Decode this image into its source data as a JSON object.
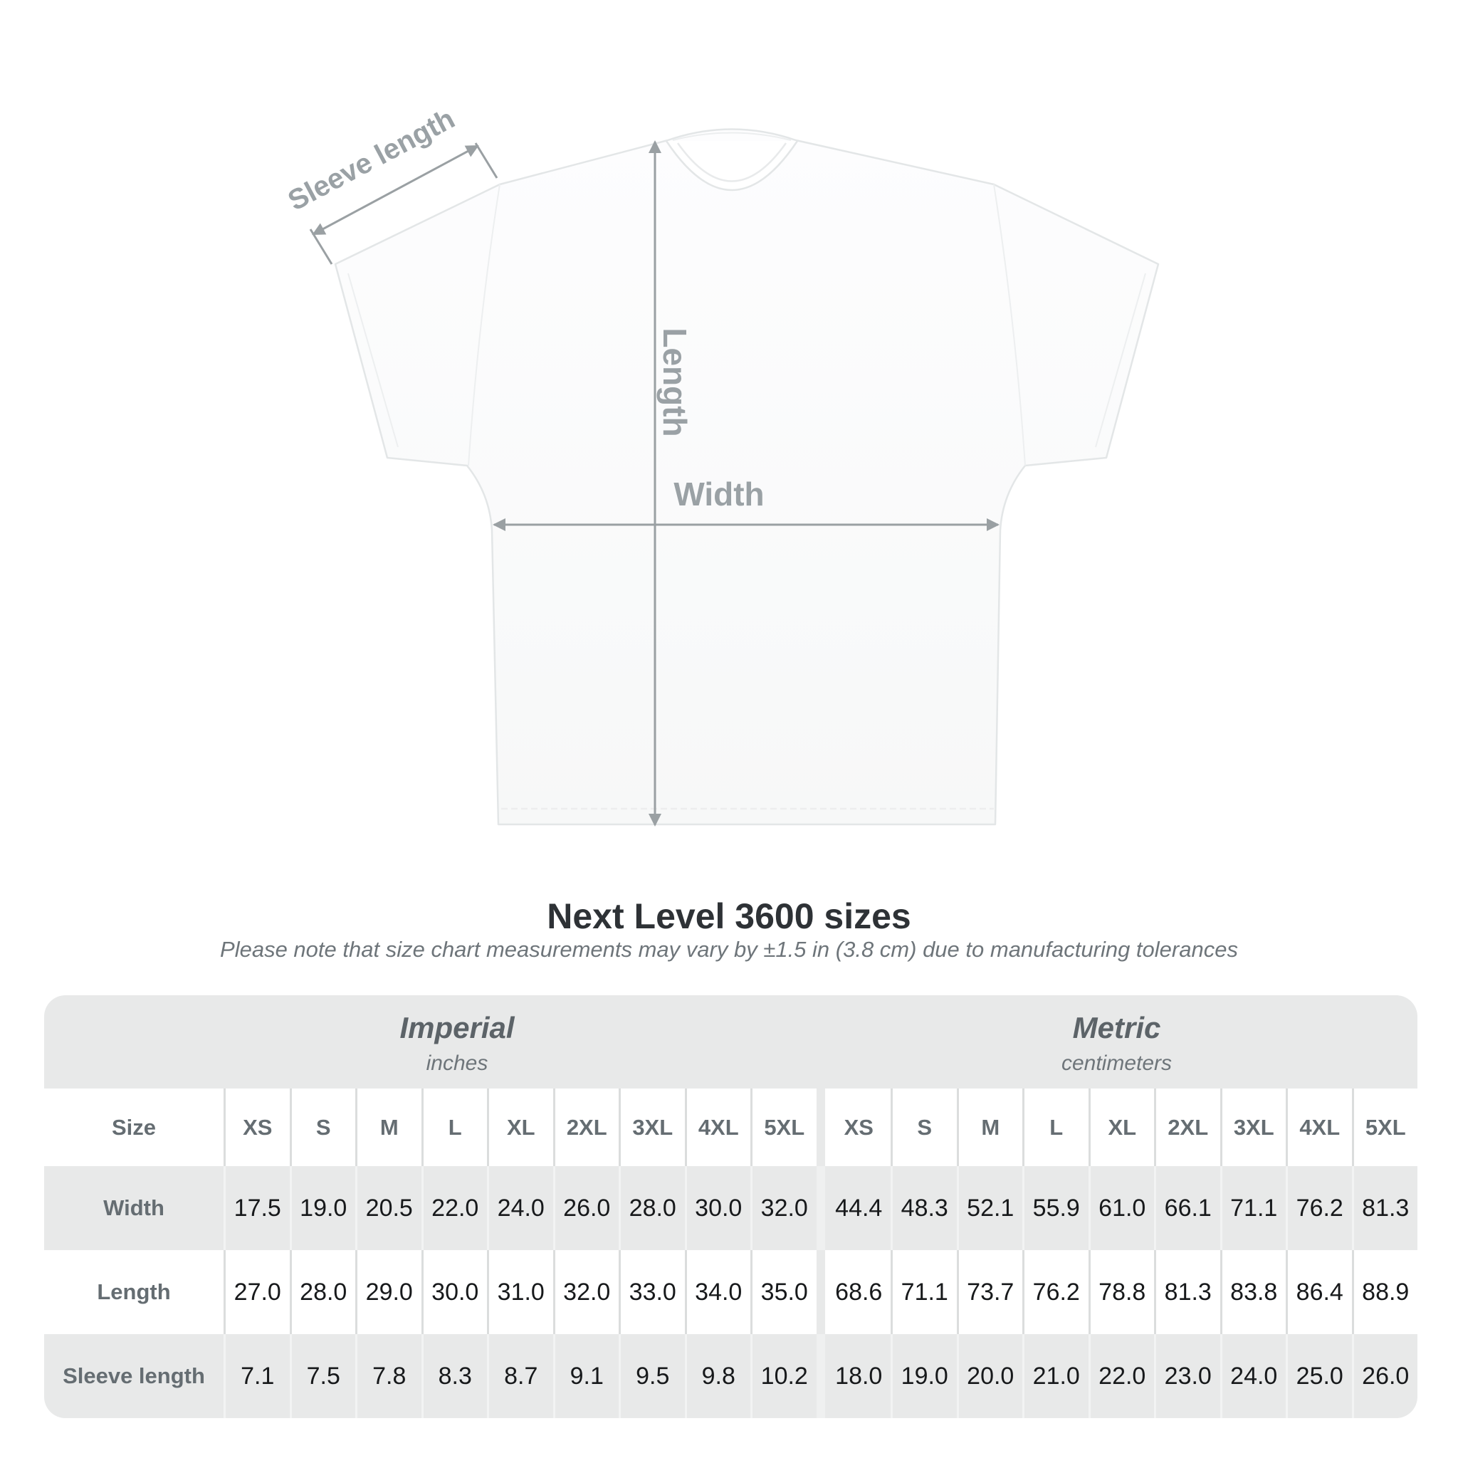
{
  "diagram": {
    "sleeve_label": "Sleeve length",
    "length_label": "Length",
    "width_label": "Width"
  },
  "title": "Next Level 3600 sizes",
  "subtitle": "Please note that size chart measurements may vary by ±1.5 in (3.8 cm) due to manufacturing tolerances",
  "table": {
    "size_label": "Size",
    "sizes": [
      "XS",
      "S",
      "M",
      "L",
      "XL",
      "2XL",
      "3XL",
      "4XL",
      "5XL"
    ],
    "groups": [
      {
        "name": "Imperial",
        "unit": "inches"
      },
      {
        "name": "Metric",
        "unit": "centimeters"
      }
    ],
    "rows": [
      {
        "label": "Width",
        "imperial": [
          "17.5",
          "19.0",
          "20.5",
          "22.0",
          "24.0",
          "26.0",
          "28.0",
          "30.0",
          "32.0"
        ],
        "metric": [
          "44.4",
          "48.3",
          "52.1",
          "55.9",
          "61.0",
          "66.1",
          "71.1",
          "76.2",
          "81.3"
        ]
      },
      {
        "label": "Length",
        "imperial": [
          "27.0",
          "28.0",
          "29.0",
          "30.0",
          "31.0",
          "32.0",
          "33.0",
          "34.0",
          "35.0"
        ],
        "metric": [
          "68.6",
          "71.1",
          "73.7",
          "76.2",
          "78.8",
          "81.3",
          "83.8",
          "86.4",
          "88.9"
        ]
      },
      {
        "label": "Sleeve length",
        "imperial": [
          "7.1",
          "7.5",
          "7.8",
          "8.3",
          "8.7",
          "9.1",
          "9.5",
          "9.8",
          "10.2"
        ],
        "metric": [
          "18.0",
          "19.0",
          "20.0",
          "21.0",
          "22.0",
          "23.0",
          "24.0",
          "25.0",
          "26.0"
        ]
      }
    ]
  },
  "chart_data": {
    "type": "table",
    "title": "Next Level 3600 sizes",
    "column_groups": [
      "Imperial (inches)",
      "Metric (centimeters)"
    ],
    "columns": [
      "XS",
      "S",
      "M",
      "L",
      "XL",
      "2XL",
      "3XL",
      "4XL",
      "5XL"
    ],
    "rows": [
      {
        "label": "Width (in)",
        "values": [
          17.5,
          19.0,
          20.5,
          22.0,
          24.0,
          26.0,
          28.0,
          30.0,
          32.0
        ]
      },
      {
        "label": "Length (in)",
        "values": [
          27.0,
          28.0,
          29.0,
          30.0,
          31.0,
          32.0,
          33.0,
          34.0,
          35.0
        ]
      },
      {
        "label": "Sleeve length (in)",
        "values": [
          7.1,
          7.5,
          7.8,
          8.3,
          8.7,
          9.1,
          9.5,
          9.8,
          10.2
        ]
      },
      {
        "label": "Width (cm)",
        "values": [
          44.4,
          48.3,
          52.1,
          55.9,
          61.0,
          66.1,
          71.1,
          76.2,
          81.3
        ]
      },
      {
        "label": "Length (cm)",
        "values": [
          68.6,
          71.1,
          73.7,
          76.2,
          78.8,
          81.3,
          83.8,
          86.4,
          88.9
        ]
      },
      {
        "label": "Sleeve length (cm)",
        "values": [
          18.0,
          19.0,
          20.0,
          21.0,
          22.0,
          23.0,
          24.0,
          25.0,
          26.0
        ]
      }
    ]
  },
  "colors": {
    "background": "#ffffff",
    "table_gray": "#e8e9e9",
    "annotation_gray": "#9aa1a5",
    "label_gray": "#656d72",
    "value_text": "#17191b",
    "title_text": "#2e3236",
    "subtitle_text": "#6e757a"
  }
}
